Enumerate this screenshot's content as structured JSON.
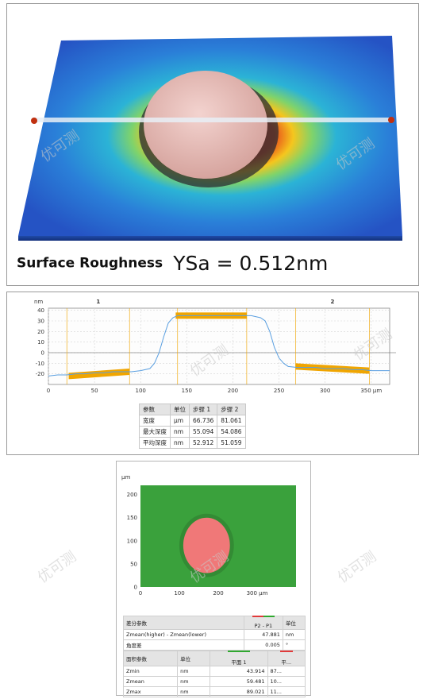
{
  "surface_caption": {
    "label": "Surface Roughness",
    "value": "YSa = 0.512nm"
  },
  "watermark_text": "优可测",
  "chart_data": [
    {
      "type": "line",
      "xlabel": "µm",
      "ylabel": "nm",
      "xlim": [
        0,
        370
      ],
      "ylim": [
        -30,
        42
      ],
      "x_ticks": [
        "0",
        "50",
        "100",
        "150",
        "200",
        "250",
        "300",
        "350 µm"
      ],
      "y_ticks": [
        "40",
        "30",
        "20",
        "10",
        "0",
        "-10",
        "-20"
      ],
      "step_labels": [
        "1",
        "2"
      ],
      "x": [
        0,
        10,
        20,
        30,
        40,
        50,
        60,
        70,
        80,
        90,
        100,
        110,
        115,
        120,
        125,
        130,
        135,
        140,
        150,
        160,
        170,
        180,
        190,
        200,
        210,
        220,
        230,
        235,
        240,
        245,
        250,
        255,
        260,
        270,
        280,
        290,
        300,
        310,
        320,
        330,
        340,
        350,
        360,
        370
      ],
      "y": [
        -22,
        -21,
        -21,
        -20,
        -20,
        -19,
        -19,
        -18,
        -18,
        -18,
        -17,
        -15,
        -10,
        0,
        15,
        28,
        33,
        35,
        35,
        35,
        35,
        35,
        35,
        35,
        35,
        35,
        33,
        30,
        20,
        5,
        -5,
        -10,
        -13,
        -14,
        -14,
        -14,
        -15,
        -15,
        -15,
        -16,
        -16,
        -17,
        -17,
        -17
      ],
      "bands": [
        {
          "x_start": 22,
          "x_end": 88,
          "y_from": -22,
          "y_to": -18
        },
        {
          "x_start": 138,
          "x_end": 215,
          "y_from": 35,
          "y_to": 35
        },
        {
          "x_start": 268,
          "x_end": 348,
          "y_from": -13,
          "y_to": -17
        }
      ],
      "marker_lines_x": [
        20,
        88,
        140,
        215,
        268,
        348
      ],
      "colors": {
        "profile": "#5a9fe0",
        "band": "#f0a500",
        "marker": "#f0a500"
      },
      "table": {
        "headers": [
          "参数",
          "单位",
          "步骤 1",
          "步骤 2"
        ],
        "rows": [
          [
            "宽度",
            "µm",
            "66.736",
            "81.061"
          ],
          [
            "最大深度",
            "nm",
            "55.094",
            "54.086"
          ],
          [
            "平均深度",
            "nm",
            "52.912",
            "51.059"
          ]
        ]
      }
    },
    {
      "type": "heatmap",
      "ylabel": "µm",
      "xlabel": "µm",
      "xlim": [
        0,
        400
      ],
      "ylim": [
        0,
        220
      ],
      "x_ticks": [
        "0",
        "100",
        "200",
        "300 µm"
      ],
      "y_ticks": [
        "200",
        "150",
        "100",
        "50",
        "0"
      ],
      "regions": [
        {
          "name": "background",
          "color": "#3aa13c"
        },
        {
          "name": "disc",
          "color": "#f07878",
          "center": [
            170,
            90
          ],
          "radius": 60
        }
      ],
      "diff_table": {
        "headers": [
          "差分参数",
          "P2 - P1",
          "单位"
        ],
        "rows": [
          [
            "Zmean(higher) - Zmean(lower)",
            "47.881",
            "nm"
          ],
          [
            "角度差",
            "0.005",
            "°"
          ]
        ],
        "tag_colors": [
          "#e03a3a",
          "#2fa82f"
        ]
      },
      "area_table": {
        "headers": [
          "面积参数",
          "单位",
          "平面 1",
          "平..."
        ],
        "rows": [
          [
            "Zmin",
            "nm",
            "43.914",
            "87..."
          ],
          [
            "Zmean",
            "nm",
            "59.481",
            "10..."
          ],
          [
            "Zmax",
            "nm",
            "89.021",
            "11..."
          ]
        ],
        "tag_colors": [
          "#2fa82f",
          "#e03a3a"
        ]
      }
    }
  ]
}
